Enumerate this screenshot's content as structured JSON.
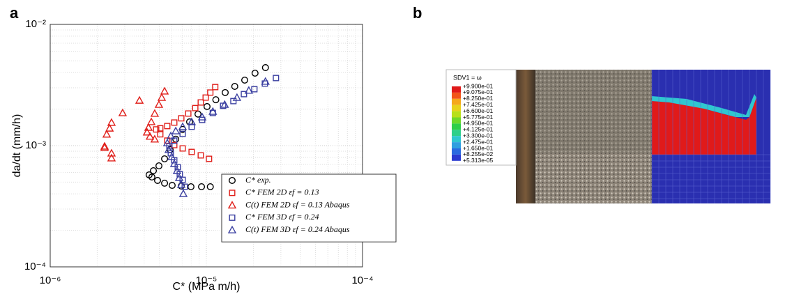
{
  "panel_a_label": "a",
  "panel_b_label": "b",
  "chart_data": {
    "type": "scatter",
    "x_label": "C* (MPa m/h)",
    "y_label": "da/dt (mm/h)",
    "log_x": true,
    "log_y": true,
    "grid": true,
    "minor_grid": true,
    "legend": "lower right",
    "xlim": [
      1e-06,
      0.0001
    ],
    "ylim": [
      0.0001,
      0.01
    ],
    "xticks": [
      {
        "value": 1e-06,
        "label": "10⁻⁶"
      },
      {
        "value": 1e-05,
        "label": "10⁻⁵"
      },
      {
        "value": 0.0001,
        "label": "10⁻⁴"
      }
    ],
    "yticks": [
      {
        "value": 0.0001,
        "label": "10⁻⁴"
      },
      {
        "value": 0.001,
        "label": "10⁻³"
      },
      {
        "value": 0.01,
        "label": "10⁻²"
      }
    ],
    "series": [
      {
        "name": "C* exp.",
        "color": "#000000",
        "marker": "circle",
        "x": [
          1.06e-05,
          9.31e-06,
          7.97e-06,
          6.91e-06,
          6.04e-06,
          5.4e-06,
          4.87e-06,
          4.48e-06,
          4.3e-06,
          4.58e-06,
          4.97e-06,
          5.4e-06,
          5.86e-06,
          6.37e-06,
          7.05e-06,
          7.81e-06,
          8.84e-06,
          1.01e-05,
          1.15e-05,
          1.32e-05,
          1.52e-05,
          1.76e-05,
          2.05e-05,
          2.39e-05
        ],
        "values": [
          0.000458,
          0.000458,
          0.000458,
          0.000464,
          0.00047,
          0.00049,
          0.000516,
          0.000551,
          0.000574,
          0.000621,
          0.000681,
          0.000778,
          0.000925,
          0.00113,
          0.00136,
          0.00157,
          0.00182,
          0.0021,
          0.00239,
          0.00274,
          0.00308,
          0.00347,
          0.00396,
          0.0044
        ]
      },
      {
        "name": "C* FEM 2D εf = 0.13",
        "color": "#e0201b",
        "marker": "square",
        "x": [
          1.14e-05,
          1.06e-05,
          9.9e-06,
          9.21e-06,
          8.49e-06,
          7.66e-06,
          6.91e-06,
          6.23e-06,
          5.62e-06,
          5.07e-06,
          4.77e-06,
          5.07e-06,
          5.62e-06,
          6.23e-06,
          7.05e-06,
          8.05e-06,
          9.21e-06,
          1.04e-05
        ],
        "values": [
          0.00304,
          0.00274,
          0.00249,
          0.00227,
          0.00204,
          0.00184,
          0.00168,
          0.00155,
          0.00145,
          0.00139,
          0.00136,
          0.00124,
          0.0011,
          0.00101,
          0.000948,
          0.000887,
          0.000831,
          0.000778
        ]
      },
      {
        "name": "C(t) FEM 2D εf = 0.13 Abaqus",
        "color": "#e0201b",
        "marker": "triangle",
        "x": [
          5.4e-06,
          5.18e-06,
          4.97e-06,
          4.67e-06,
          4.44e-06,
          4.26e-06,
          4.17e-06,
          4.35e-06,
          4.67e-06,
          3.73e-06,
          2.91e-06,
          2.47e-06,
          2.4e-06,
          2.3e-06,
          2.23e-06,
          2.23e-06,
          2.47e-06,
          2.47e-06
        ],
        "values": [
          0.00281,
          0.00249,
          0.00218,
          0.00184,
          0.00157,
          0.00141,
          0.00129,
          0.00119,
          0.00113,
          0.00236,
          0.00186,
          0.00155,
          0.00139,
          0.00124,
          0.000987,
          0.000962,
          0.000865,
          0.000789
        ]
      },
      {
        "name": "C* FEM 3D εf = 0.24",
        "color": "#3a3fa0",
        "marker": "square",
        "x": [
          2.79e-05,
          2.37e-05,
          2.03e-05,
          1.74e-05,
          1.49e-05,
          1.28e-05,
          1.1e-05,
          9.4e-06,
          8.05e-06,
          7.05e-06,
          6.23e-06,
          5.8e-06,
          5.92e-06,
          6.23e-06,
          6.56e-06,
          6.76e-06,
          7.05e-06,
          7.27e-06
        ],
        "values": [
          0.00361,
          0.00325,
          0.00292,
          0.00266,
          0.00233,
          0.00213,
          0.00186,
          0.00163,
          0.00143,
          0.00125,
          0.0011,
          0.000987,
          0.000865,
          0.000757,
          0.000664,
          0.000581,
          0.000522,
          0.000458
        ]
      },
      {
        "name": "C(t) FEM 3D εf = 0.24 Abaqus",
        "color": "#3a3fa0",
        "marker": "triangle",
        "x": [
          2.39e-05,
          1.87e-05,
          1.57e-05,
          1.31e-05,
          1.1e-05,
          9.4e-06,
          8.05e-06,
          7.05e-06,
          6.37e-06,
          5.92e-06,
          5.62e-06,
          5.74e-06,
          6e-06,
          6.23e-06,
          6.49e-06,
          6.7e-06,
          6.91e-06,
          7.12e-06
        ],
        "values": [
          0.00338,
          0.00285,
          0.00249,
          0.00218,
          0.00191,
          0.00172,
          0.00157,
          0.00143,
          0.00132,
          0.0012,
          0.00105,
          0.000925,
          0.00081,
          0.00071,
          0.000621,
          0.000544,
          0.000477,
          0.000401
        ]
      }
    ]
  },
  "panel_b": {
    "legend_title": "SDV1 = ω",
    "levels": [
      "+9.900e-01",
      "+9.075e-01",
      "+8.250e-01",
      "+7.425e-01",
      "+6.600e-01",
      "+5.775e-01",
      "+4.950e-01",
      "+4.125e-01",
      "+3.300e-01",
      "+2.475e-01",
      "+1.650e-01",
      "+8.255e-02",
      "+5.313e-05"
    ]
  }
}
